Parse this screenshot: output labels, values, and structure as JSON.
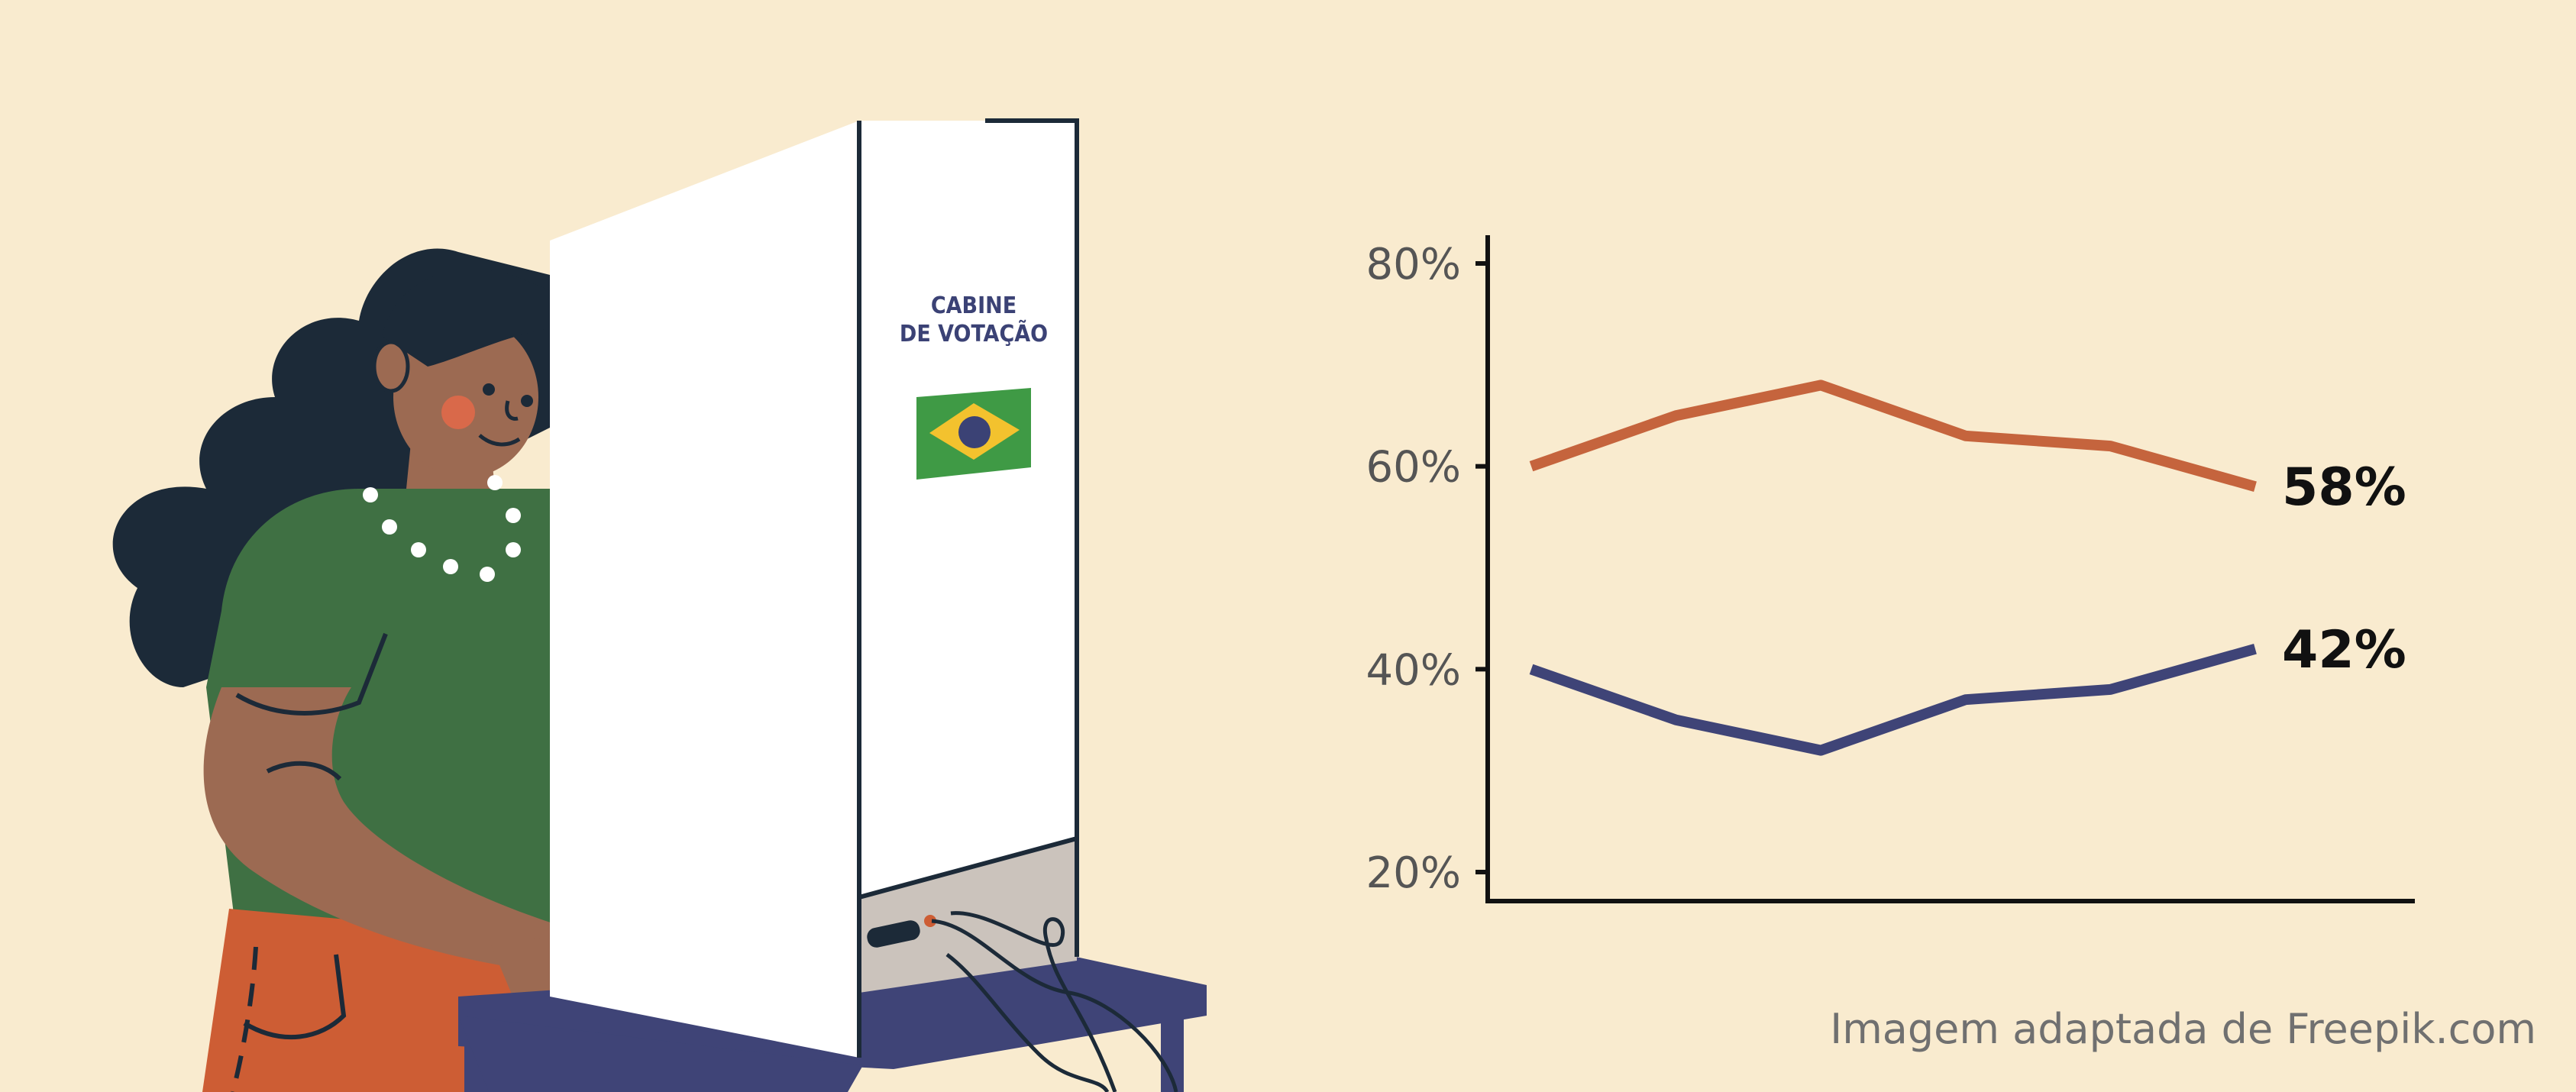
{
  "illustration": {
    "booth_label_line1": "CABINE",
    "booth_label_line2": "DE VOTAÇÃO",
    "colors": {
      "background": "#f9ebcf",
      "skin": "#9c6a52",
      "hair": "#1c2a38",
      "shirt": "#3f7043",
      "pants": "#cd5d34",
      "table": "#3f4477",
      "flag_green": "#3f9a45",
      "flag_yellow": "#f3c22e",
      "flag_blue": "#3b4275"
    }
  },
  "chart_data": {
    "type": "line",
    "title": "",
    "xlabel": "",
    "ylabel": "",
    "x": [
      1,
      2,
      3,
      4,
      5,
      6
    ],
    "ylim": [
      20,
      80
    ],
    "yticks": [
      20,
      40,
      60,
      80
    ],
    "ytick_labels": [
      "20%",
      "40%",
      "60%",
      "80%"
    ],
    "xticks_shown": false,
    "grid": false,
    "legend": "none",
    "series": [
      {
        "values": [
          60,
          65,
          68,
          63,
          62,
          58
        ],
        "color": "#c5643d",
        "end_label": "58%"
      },
      {
        "values": [
          40,
          35,
          32,
          37,
          38,
          42
        ],
        "color": "#3f4477",
        "end_label": "42%"
      }
    ]
  },
  "footer": {
    "credit": "Imagem adaptada de Freepik.com"
  }
}
